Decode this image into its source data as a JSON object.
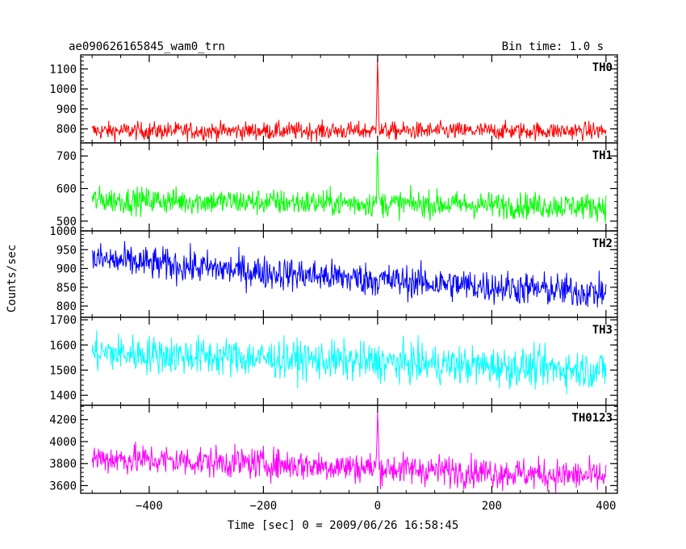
{
  "chart_data": {
    "type": "line",
    "title": "ae090626165845_wam0_trn",
    "bin_time_label": "Bin time: 1.0 s",
    "xlabel": "Time [sec] 0 = 2009/06/26 16:58:45",
    "ylabel": "Counts/sec",
    "xlim": [
      -520,
      420
    ],
    "x_ticks": [
      -400,
      -200,
      0,
      200,
      400
    ],
    "x_tick_labels": [
      "−400",
      "−200",
      "0",
      "200",
      "400"
    ],
    "x_data_range": [
      -500,
      400
    ],
    "panels": [
      {
        "name": "TH0",
        "color": "#ff0000",
        "ylim": [
          730,
          1170
        ],
        "y_ticks": [
          800,
          900,
          1000,
          1100
        ],
        "y_tick_labels": [
          "800",
          "900",
          "1000",
          "1100"
        ],
        "baseline": [
          [
            -500,
            790
          ],
          [
            400,
            790
          ]
        ],
        "noise_sd": 22,
        "peak": {
          "x": 0,
          "height": 390,
          "width": 3
        }
      },
      {
        "name": "TH1",
        "color": "#00ff00",
        "ylim": [
          470,
          740
        ],
        "y_ticks": [
          500,
          600,
          700
        ],
        "y_tick_labels": [
          "500",
          "600",
          "700"
        ],
        "baseline": [
          [
            -500,
            565
          ],
          [
            400,
            545
          ]
        ],
        "noise_sd": 20,
        "peak": {
          "x": 0,
          "height": 150,
          "width": 3
        }
      },
      {
        "name": "TH2",
        "color": "#0000ff",
        "ylim": [
          770,
          1000
        ],
        "y_ticks": [
          800,
          850,
          900,
          950,
          1000
        ],
        "y_tick_labels": [
          "800",
          "850",
          "900",
          "950",
          "1000"
        ],
        "baseline": [
          [
            -500,
            925
          ],
          [
            -200,
            890
          ],
          [
            100,
            860
          ],
          [
            400,
            835
          ]
        ],
        "noise_sd": 22,
        "peak": null
      },
      {
        "name": "TH3",
        "color": "#00ffff",
        "ylim": [
          1360,
          1710
        ],
        "y_ticks": [
          1400,
          1500,
          1600,
          1700
        ],
        "y_tick_labels": [
          "1400",
          "1500",
          "1600",
          "1700"
        ],
        "baseline": [
          [
            -500,
            1570
          ],
          [
            400,
            1500
          ]
        ],
        "noise_sd": 38,
        "peak": null
      },
      {
        "name": "TH0123",
        "color": "#ff00ff",
        "ylim": [
          3530,
          4330
        ],
        "y_ticks": [
          3600,
          3800,
          4000,
          4200
        ],
        "y_tick_labels": [
          "3600",
          "3800",
          "4000",
          "4200"
        ],
        "baseline": [
          [
            -500,
            3850
          ],
          [
            -200,
            3800
          ],
          [
            0,
            3760
          ],
          [
            400,
            3680
          ]
        ],
        "noise_sd": 70,
        "peak": {
          "x": 0,
          "height": 500,
          "width": 3
        }
      }
    ]
  }
}
